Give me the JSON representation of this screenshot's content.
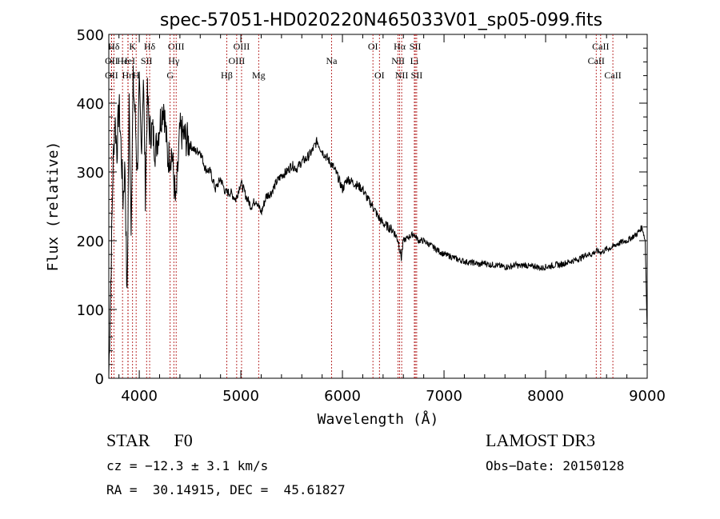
{
  "chart_data": {
    "type": "line",
    "title": "spec-57051-HD020220N465033V01_sp05-099.fits",
    "xlabel": "Wavelength (Å)",
    "ylabel": "Flux (relative)",
    "xlim": [
      3700,
      9000
    ],
    "ylim": [
      0,
      500
    ],
    "xticks": [
      4000,
      5000,
      6000,
      7000,
      8000,
      9000
    ],
    "yticks": [
      0,
      100,
      200,
      300,
      400,
      500
    ],
    "grid": false,
    "series": [
      {
        "name": "flux",
        "x": [
          3700,
          3720,
          3740,
          3760,
          3780,
          3800,
          3820,
          3840,
          3860,
          3880,
          3900,
          3920,
          3940,
          3960,
          3980,
          4000,
          4020,
          4040,
          4060,
          4080,
          4100,
          4130,
          4160,
          4200,
          4240,
          4280,
          4320,
          4360,
          4400,
          4450,
          4500,
          4550,
          4600,
          4650,
          4700,
          4750,
          4800,
          4850,
          4900,
          4950,
          5000,
          5050,
          5100,
          5150,
          5200,
          5250,
          5300,
          5350,
          5400,
          5450,
          5500,
          5550,
          5600,
          5650,
          5700,
          5750,
          5800,
          5850,
          5900,
          5950,
          6000,
          6050,
          6100,
          6150,
          6200,
          6250,
          6300,
          6350,
          6400,
          6450,
          6500,
          6550,
          6580,
          6600,
          6650,
          6700,
          6750,
          6800,
          6850,
          6900,
          6950,
          7000,
          7050,
          7100,
          7150,
          7200,
          7250,
          7300,
          7350,
          7400,
          7450,
          7500,
          7550,
          7600,
          7650,
          7700,
          7750,
          7800,
          7850,
          7900,
          7950,
          8000,
          8050,
          8100,
          8150,
          8200,
          8250,
          8300,
          8350,
          8400,
          8450,
          8500,
          8550,
          8600,
          8650,
          8700,
          8750,
          8800,
          8850,
          8900,
          8950,
          8980,
          9000
        ],
        "y": [
          5,
          140,
          300,
          380,
          330,
          400,
          340,
          260,
          310,
          110,
          400,
          230,
          430,
          380,
          300,
          420,
          330,
          440,
          270,
          410,
          360,
          360,
          330,
          370,
          400,
          320,
          330,
          250,
          360,
          350,
          340,
          330,
          330,
          305,
          300,
          275,
          290,
          270,
          270,
          260,
          285,
          265,
          250,
          260,
          240,
          265,
          270,
          285,
          295,
          300,
          310,
          305,
          315,
          320,
          330,
          345,
          330,
          320,
          310,
          295,
          275,
          290,
          285,
          280,
          275,
          260,
          250,
          235,
          225,
          220,
          215,
          200,
          175,
          200,
          205,
          210,
          200,
          200,
          195,
          190,
          185,
          180,
          178,
          175,
          172,
          170,
          168,
          168,
          165,
          168,
          165,
          165,
          163,
          162,
          162,
          165,
          163,
          165,
          162,
          163,
          160,
          162,
          163,
          165,
          165,
          168,
          170,
          172,
          175,
          180,
          180,
          185,
          183,
          188,
          190,
          195,
          198,
          200,
          205,
          210,
          220,
          200,
          70
        ]
      }
    ],
    "lines": [
      {
        "name": "Hδ",
        "wl": 3750,
        "pos": "top1"
      },
      {
        "name": "OII",
        "wl": 3727,
        "pos": "top2"
      },
      {
        "name": "OII",
        "wl": 3727,
        "pos": "top3"
      },
      {
        "name": "Hε",
        "wl": 3835,
        "pos": "top2"
      },
      {
        "name": "Hη",
        "wl": 3889,
        "pos": "top3"
      },
      {
        "name": "K",
        "wl": 3934,
        "pos": "top1"
      },
      {
        "name": "H",
        "wl": 3969,
        "pos": "top3"
      },
      {
        "name": "HeI",
        "wl": 3889,
        "pos": "top2"
      },
      {
        "name": "SII",
        "wl": 4072,
        "pos": "top2"
      },
      {
        "name": "Hδ",
        "wl": 4102,
        "pos": "top1"
      },
      {
        "name": "OIII",
        "wl": 4363,
        "pos": "top1"
      },
      {
        "name": "Hγ",
        "wl": 4340,
        "pos": "top2"
      },
      {
        "name": "G",
        "wl": 4304,
        "pos": "top3"
      },
      {
        "name": "Hβ",
        "wl": 4861,
        "pos": "top3"
      },
      {
        "name": "OIII",
        "wl": 4959,
        "pos": "top2"
      },
      {
        "name": "OIII",
        "wl": 5007,
        "pos": "top1"
      },
      {
        "name": "Mg",
        "wl": 5175,
        "pos": "top3"
      },
      {
        "name": "Na",
        "wl": 5893,
        "pos": "top2"
      },
      {
        "name": "OI",
        "wl": 6300,
        "pos": "top1"
      },
      {
        "name": "OI",
        "wl": 6364,
        "pos": "top3"
      },
      {
        "name": "Hα",
        "wl": 6563,
        "pos": "top1"
      },
      {
        "name": "NII",
        "wl": 6548,
        "pos": "top2"
      },
      {
        "name": "NII",
        "wl": 6583,
        "pos": "top3"
      },
      {
        "name": "SII",
        "wl": 6717,
        "pos": "top1"
      },
      {
        "name": "Li",
        "wl": 6708,
        "pos": "top2"
      },
      {
        "name": "SII",
        "wl": 6731,
        "pos": "top3"
      },
      {
        "name": "CaII",
        "wl": 8542,
        "pos": "top1"
      },
      {
        "name": "CaII",
        "wl": 8498,
        "pos": "top2"
      },
      {
        "name": "CaII",
        "wl": 8662,
        "pos": "top3"
      }
    ]
  },
  "info": {
    "class": "STAR",
    "subclass": "F0",
    "survey": "LAMOST DR3",
    "cz": "cz = −12.3 ± 3.1 km/s",
    "obsdate": "Obs−Date: 20150128",
    "radec": "RA =  30.14915, DEC =  45.61827"
  }
}
